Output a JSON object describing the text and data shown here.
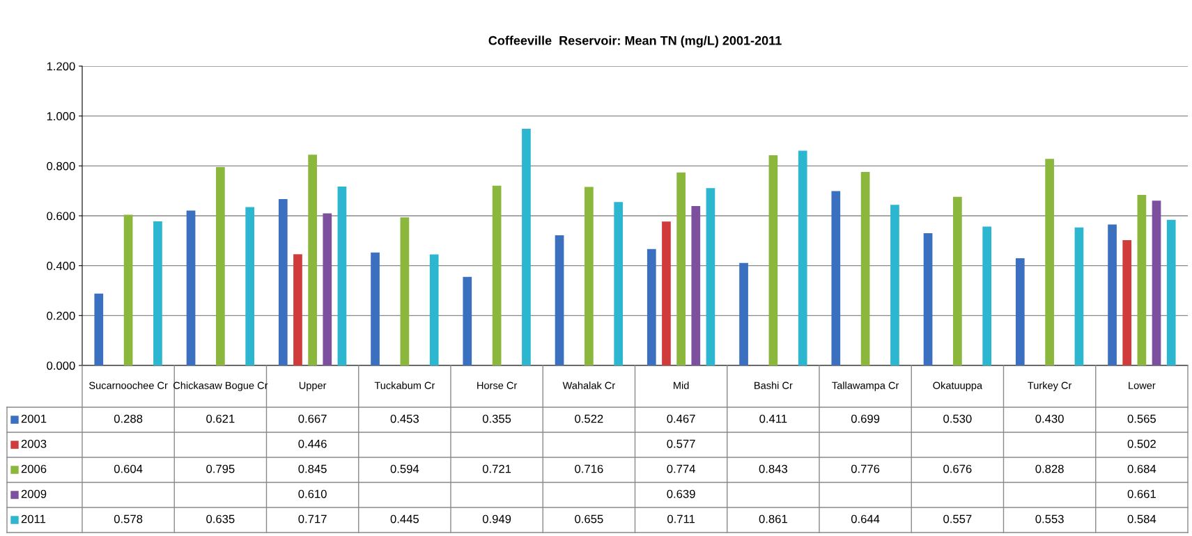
{
  "chart_data": {
    "type": "bar",
    "title": "Coffeeville  Reservoir: Mean TN (mg/L) 2001-2011",
    "categories": [
      "Sucarnoochee Cr",
      "Chickasaw Bogue Cr",
      "Upper",
      "Tuckabum Cr",
      "Horse Cr",
      "Wahalak Cr",
      "Mid",
      "Bashi Cr",
      "Tallawampa Cr",
      "Okatuuppa",
      "Turkey Cr",
      "Lower"
    ],
    "series": [
      {
        "name": "2001",
        "color": "#3b6fc0",
        "values": [
          0.288,
          0.621,
          0.667,
          0.453,
          0.355,
          0.522,
          0.467,
          0.411,
          0.699,
          0.53,
          0.43,
          0.565
        ],
        "value_labels": [
          "0.288",
          "0.621",
          "0.667",
          "0.453",
          "0.355",
          "0.522",
          "0.467",
          "0.411",
          "0.699",
          "0.530",
          "0.430",
          "0.565"
        ]
      },
      {
        "name": "2003",
        "color": "#d03b3b",
        "values": [
          null,
          null,
          0.446,
          null,
          null,
          null,
          0.577,
          null,
          null,
          null,
          null,
          0.502
        ],
        "value_labels": [
          null,
          null,
          "0.446",
          null,
          null,
          null,
          "0.577",
          null,
          null,
          null,
          null,
          "0.502"
        ]
      },
      {
        "name": "2006",
        "color": "#8bb83c",
        "values": [
          0.604,
          0.795,
          0.845,
          0.594,
          0.721,
          0.716,
          0.774,
          0.843,
          0.776,
          0.676,
          0.828,
          0.684
        ],
        "value_labels": [
          "0.604",
          "0.795",
          "0.845",
          "0.594",
          "0.721",
          "0.716",
          "0.774",
          "0.843",
          "0.776",
          "0.676",
          "0.828",
          "0.684"
        ]
      },
      {
        "name": "2009",
        "color": "#7d509f",
        "values": [
          null,
          null,
          0.61,
          null,
          null,
          null,
          0.639,
          null,
          null,
          null,
          null,
          0.661
        ],
        "value_labels": [
          null,
          null,
          "0.610",
          null,
          null,
          null,
          "0.639",
          null,
          null,
          null,
          null,
          "0.661"
        ]
      },
      {
        "name": "2011",
        "color": "#2db6cf",
        "values": [
          0.578,
          0.635,
          0.717,
          0.445,
          0.949,
          0.655,
          0.711,
          0.861,
          0.644,
          0.557,
          0.553,
          0.584
        ],
        "value_labels": [
          "0.578",
          "0.635",
          "0.717",
          "0.445",
          "0.949",
          "0.655",
          "0.711",
          "0.861",
          "0.644",
          "0.557",
          "0.553",
          "0.584"
        ]
      }
    ],
    "ylim": [
      0,
      1.2
    ],
    "yticks": [
      {
        "value": 0,
        "label": "0.000"
      },
      {
        "value": 0.2,
        "label": "0.200"
      },
      {
        "value": 0.4,
        "label": "0.400"
      },
      {
        "value": 0.6,
        "label": "0.600"
      },
      {
        "value": 0.8,
        "label": "0.800"
      },
      {
        "value": 1.0,
        "label": "1.000"
      },
      {
        "value": 1.2,
        "label": "1.200"
      }
    ],
    "grid": "y",
    "legend": "bottom"
  }
}
